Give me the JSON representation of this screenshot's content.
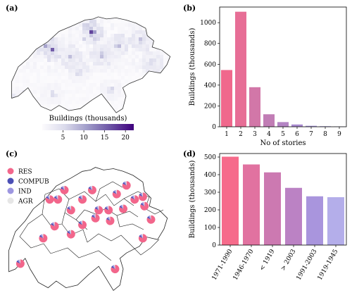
{
  "panels": {
    "a": "(a)",
    "b": "(b)",
    "c": "(c)",
    "d": "(d)"
  },
  "chart_data": [
    {
      "id": "a",
      "type": "heatmap",
      "title": "",
      "colorbar_label": "Buildings (thousands)",
      "colorbar_ticks": [
        "5",
        "10",
        "15",
        "20"
      ],
      "colorbar_range": [
        0,
        22
      ],
      "colormap": [
        "#fcfbfd",
        "#dadaeb",
        "#9e9ac8",
        "#6a51a3",
        "#3f007d"
      ],
      "hotspots": [
        {
          "x": 0.5,
          "y": 0.17,
          "v": 20
        },
        {
          "x": 0.26,
          "y": 0.34,
          "v": 15
        },
        {
          "x": 0.22,
          "y": 0.3,
          "v": 12
        },
        {
          "x": 0.66,
          "y": 0.3,
          "v": 10
        },
        {
          "x": 0.8,
          "y": 0.25,
          "v": 9
        },
        {
          "x": 0.37,
          "y": 0.41,
          "v": 8
        },
        {
          "x": 0.56,
          "y": 0.39,
          "v": 9
        },
        {
          "x": 0.87,
          "y": 0.45,
          "v": 7
        },
        {
          "x": 0.06,
          "y": 0.82,
          "v": 10
        },
        {
          "x": 0.62,
          "y": 0.72,
          "v": 6
        },
        {
          "x": 0.42,
          "y": 0.56,
          "v": 6
        },
        {
          "x": 0.26,
          "y": 0.76,
          "v": 5
        }
      ]
    },
    {
      "id": "b",
      "type": "bar",
      "categories": [
        "1",
        "2",
        "3",
        "4",
        "5",
        "6",
        "7",
        "8",
        "9"
      ],
      "values": [
        545,
        1105,
        380,
        120,
        45,
        22,
        9,
        5,
        3
      ],
      "colors": [
        "#f0688c",
        "#e76e96",
        "#d277a8",
        "#c17db5",
        "#b485c4",
        "#a98ad0",
        "#a392d9",
        "#a69be0",
        "#b4aee9"
      ],
      "xlabel": "No of stories",
      "ylabel": "Buildings (thousands)",
      "ylim": [
        0,
        1150
      ],
      "yticks": [
        0,
        200,
        400,
        600,
        800,
        1000
      ]
    },
    {
      "id": "c",
      "type": "pie",
      "legend": [
        {
          "label": "RES",
          "color": "#f2668b"
        },
        {
          "label": "COMPUB",
          "color": "#4b4fb5"
        },
        {
          "label": "IND",
          "color": "#9d96e0"
        },
        {
          "label": "AGR",
          "color": "#e6e6e6"
        }
      ],
      "pie_shares": [
        0.82,
        0.07,
        0.07,
        0.04
      ],
      "pies": [
        {
          "x": 0.74,
          "y": 0.175
        },
        {
          "x": 0.36,
          "y": 0.21
        },
        {
          "x": 0.53,
          "y": 0.21
        },
        {
          "x": 0.68,
          "y": 0.24
        },
        {
          "x": 0.27,
          "y": 0.28
        },
        {
          "x": 0.32,
          "y": 0.28
        },
        {
          "x": 0.47,
          "y": 0.28
        },
        {
          "x": 0.79,
          "y": 0.28
        },
        {
          "x": 0.84,
          "y": 0.26
        },
        {
          "x": 0.85,
          "y": 0.33
        },
        {
          "x": 0.4,
          "y": 0.36
        },
        {
          "x": 0.57,
          "y": 0.36
        },
        {
          "x": 0.63,
          "y": 0.36
        },
        {
          "x": 0.72,
          "y": 0.35
        },
        {
          "x": 0.55,
          "y": 0.42
        },
        {
          "x": 0.64,
          "y": 0.44
        },
        {
          "x": 0.47,
          "y": 0.47
        },
        {
          "x": 0.89,
          "y": 0.43
        },
        {
          "x": 0.3,
          "y": 0.48
        },
        {
          "x": 0.23,
          "y": 0.57
        },
        {
          "x": 0.4,
          "y": 0.54
        },
        {
          "x": 0.84,
          "y": 0.57
        },
        {
          "x": 0.09,
          "y": 0.76
        },
        {
          "x": 0.67,
          "y": 0.8
        }
      ]
    },
    {
      "id": "d",
      "type": "bar",
      "categories": [
        "1971-1990",
        "1946-1970",
        "< 1919",
        "> 2003",
        "1991-2003",
        "1919-1945"
      ],
      "values": [
        502,
        458,
        413,
        325,
        277,
        272
      ],
      "colors": [
        "#f66b8b",
        "#e172a0",
        "#cc79b1",
        "#bb82c4",
        "#a995dd",
        "#b4aeea"
      ],
      "ylabel": "Buildings (thousands)",
      "ylim": [
        0,
        520
      ],
      "yticks": [
        0,
        100,
        200,
        300,
        400,
        500
      ]
    }
  ]
}
